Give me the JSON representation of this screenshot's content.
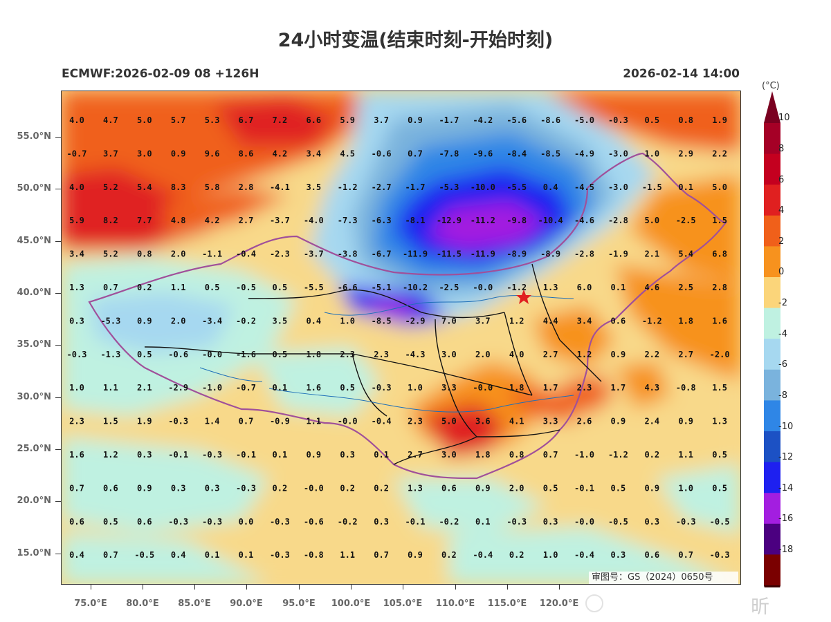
{
  "title": "24小时变温(结束时刻-开始时刻)",
  "model_label": "ECMWF:2026-02-09 08 +126H",
  "valid_time": "2026-02-14 14:00",
  "review_number": "审图号：GS（2024）0650号",
  "watermark": "昕",
  "colorbar": {
    "unit": "(°C)",
    "ticks": [
      "10",
      "8",
      "6",
      "4",
      "2",
      "0",
      "-2",
      "-4",
      "-6",
      "-8",
      "-10",
      "-12",
      "-14",
      "-16",
      "-18"
    ],
    "colors": [
      "#a50026",
      "#c4001f",
      "#e02020",
      "#f0601a",
      "#f7921e",
      "#fbd57a",
      "#bff1e1",
      "#a6d8f0",
      "#7ab3dd",
      "#2f86e6",
      "#1c51c4",
      "#1e20f0",
      "#a31ee0",
      "#4b0080",
      "#7a0000"
    ]
  },
  "axes": {
    "y_labels": [
      "55.0°N",
      "50.0°N",
      "45.0°N",
      "40.0°N",
      "35.0°N",
      "30.0°N",
      "25.0°N",
      "20.0°N",
      "15.0°N"
    ],
    "x_labels": [
      "75.0°E",
      "80.0°E",
      "85.0°E",
      "90.0°E",
      "95.0°E",
      "100.0°E",
      "105.0°E",
      "110.0°E",
      "115.0°E",
      "120.0°E"
    ]
  },
  "grid_values": [
    [
      "4.0",
      "4.7",
      "5.0",
      "5.7",
      "5.3",
      "6.7",
      "7.2",
      "6.6",
      "5.9",
      "3.7",
      "0.9",
      "-1.7",
      "-4.2",
      "-5.6",
      "-8.6",
      "-5.0",
      "-0.3",
      "0.5",
      "0.8",
      "1.9"
    ],
    [
      "-0.7",
      "3.7",
      "3.0",
      "0.9",
      "9.6",
      "8.6",
      "4.2",
      "3.4",
      "4.5",
      "-0.6",
      "0.7",
      "-7.8",
      "-9.6",
      "-8.4",
      "-8.5",
      "-4.9",
      "-3.0",
      "1.0",
      "2.9",
      "2.2"
    ],
    [
      "4.0",
      "5.2",
      "5.4",
      "8.3",
      "5.8",
      "2.8",
      "-4.1",
      "3.5",
      "-1.2",
      "-2.7",
      "-1.7",
      "-5.3",
      "-10.0",
      "-5.5",
      "0.4",
      "-4.5",
      "-3.0",
      "-1.5",
      "0.1",
      "5.0"
    ],
    [
      "5.9",
      "8.2",
      "7.7",
      "4.8",
      "4.2",
      "2.7",
      "-3.7",
      "-4.0",
      "-7.3",
      "-6.3",
      "-8.1",
      "-12.9",
      "-11.2",
      "-9.8",
      "-10.4",
      "-4.6",
      "-2.8",
      "5.0",
      "-2.5",
      "1.5"
    ],
    [
      "3.4",
      "5.2",
      "0.8",
      "2.0",
      "-1.1",
      "-0.4",
      "-2.3",
      "-3.7",
      "-3.8",
      "-6.7",
      "-11.9",
      "-11.5",
      "-11.9",
      "-8.9",
      "-8.9",
      "-2.8",
      "-1.9",
      "2.1",
      "5.4",
      "6.8"
    ],
    [
      "1.3",
      "0.7",
      "0.2",
      "1.1",
      "0.5",
      "-0.5",
      "0.5",
      "-5.5",
      "-6.6",
      "-5.1",
      "-10.2",
      "-2.5",
      "-0.0",
      "-1.2",
      "1.3",
      "6.0",
      "0.1",
      "4.6",
      "2.5",
      "2.8"
    ],
    [
      "0.3",
      "-5.3",
      "0.9",
      "2.0",
      "-3.4",
      "-0.2",
      "3.5",
      "0.4",
      "1.0",
      "-8.5",
      "-2.9",
      "7.0",
      "3.7",
      "1.2",
      "4.4",
      "3.4",
      "0.6",
      "-1.2",
      "1.8",
      "1.6"
    ],
    [
      "-0.3",
      "-1.3",
      "0.5",
      "-0.6",
      "-0.0",
      "-1.6",
      "0.5",
      "1.8",
      "2.3",
      "2.3",
      "-4.3",
      "3.0",
      "2.0",
      "4.0",
      "2.7",
      "1.2",
      "0.9",
      "2.2",
      "2.7",
      "-2.0"
    ],
    [
      "1.0",
      "1.1",
      "2.1",
      "-2.9",
      "-1.0",
      "-0.7",
      "0.1",
      "1.6",
      "0.5",
      "-0.3",
      "1.0",
      "3.3",
      "-0.0",
      "1.8",
      "1.7",
      "2.3",
      "1.7",
      "4.3",
      "-0.8",
      "1.5"
    ],
    [
      "2.3",
      "1.5",
      "1.9",
      "-0.3",
      "1.4",
      "0.7",
      "-0.9",
      "1.1",
      "-0.0",
      "-0.4",
      "2.3",
      "5.0",
      "3.6",
      "4.1",
      "3.3",
      "2.6",
      "0.9",
      "2.4",
      "0.9",
      "1.3"
    ],
    [
      "1.6",
      "1.2",
      "0.3",
      "-0.1",
      "-0.3",
      "-0.1",
      "0.1",
      "0.9",
      "0.3",
      "0.1",
      "2.7",
      "3.0",
      "1.8",
      "0.8",
      "0.7",
      "-1.0",
      "-1.2",
      "0.2",
      "1.1",
      "0.5"
    ],
    [
      "0.7",
      "0.6",
      "0.9",
      "0.3",
      "0.3",
      "-0.3",
      "0.2",
      "-0.0",
      "0.2",
      "0.2",
      "1.3",
      "0.6",
      "0.9",
      "2.0",
      "0.5",
      "-0.1",
      "0.5",
      "0.9",
      "1.0",
      "0.5"
    ],
    [
      "0.6",
      "0.5",
      "0.6",
      "-0.3",
      "-0.3",
      "0.0",
      "-0.3",
      "-0.6",
      "-0.2",
      "0.3",
      "-0.1",
      "-0.2",
      "0.1",
      "-0.3",
      "0.3",
      "-0.0",
      "-0.5",
      "0.3",
      "-0.3",
      "-0.5"
    ],
    [
      "0.4",
      "0.7",
      "-0.5",
      "0.4",
      "0.1",
      "0.1",
      "-0.3",
      "-0.8",
      "1.1",
      "0.7",
      "0.9",
      "0.2",
      "-0.4",
      "0.2",
      "1.0",
      "-0.4",
      "0.3",
      "0.6",
      "0.7",
      "-0.3"
    ]
  ]
}
